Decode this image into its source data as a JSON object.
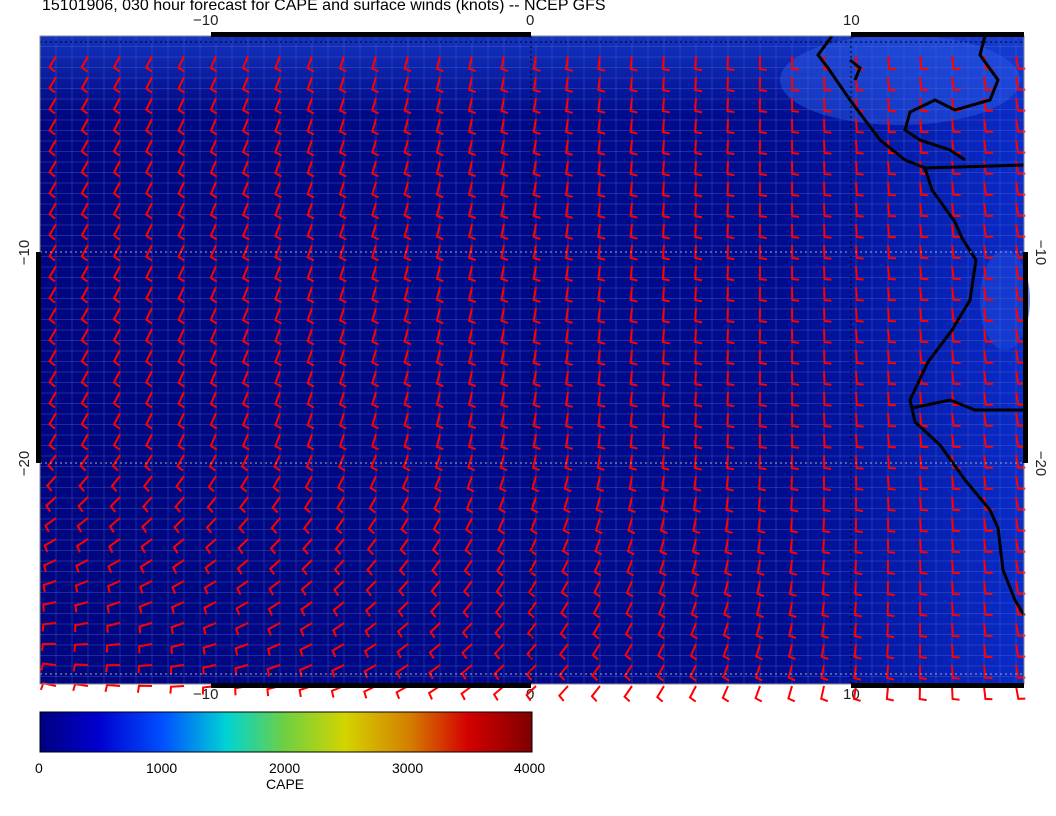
{
  "title": "15101906, 030 hour forecast for CAPE and surface winds (knots) -- NCEP GFS",
  "map": {
    "longitude_ticks": [
      "−10",
      "0",
      "10"
    ],
    "latitude_ticks": [
      "−10",
      "−20"
    ],
    "field": "CAPE",
    "wind_barb_color": "#ff0000",
    "coastline_color": "#000000",
    "background_color": "#00007f"
  },
  "colorbar": {
    "label": "CAPE",
    "ticks": [
      "0",
      "1000",
      "2000",
      "3000",
      "4000"
    ],
    "range": [
      0,
      4000
    ],
    "colormap": [
      "#00007f",
      "#0000ff",
      "#00d4d4",
      "#d4d400",
      "#d40000",
      "#7f0000"
    ]
  }
}
